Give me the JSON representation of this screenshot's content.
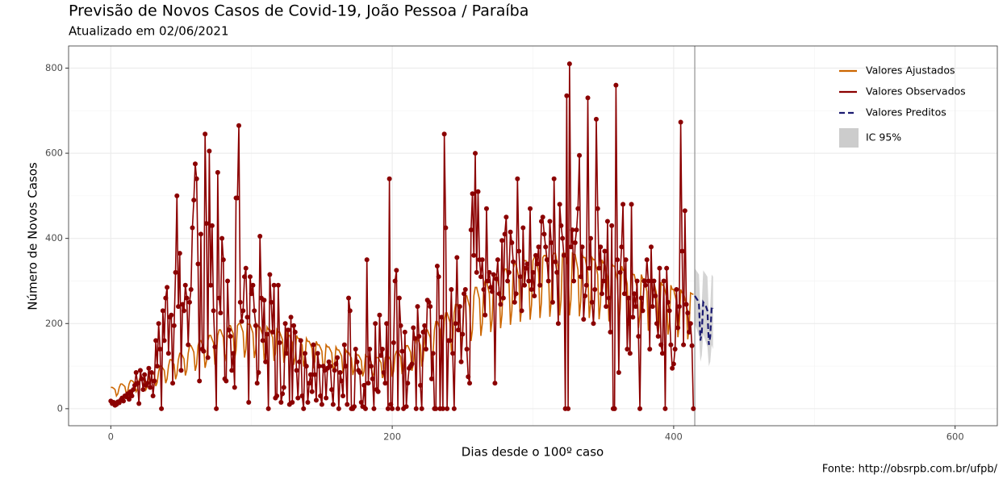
{
  "chart_data": {
    "type": "line",
    "title": "Previsão de Novos Casos de Covid-19, João Pessoa / Paraíba",
    "subtitle": "Atualizado em 02/06/2021",
    "x_label": "Dias desde o 100º caso",
    "y_label": "Número de Novos Casos",
    "caption": "Fonte: http://obsrpb.com.br/ufpb/",
    "xlim": [
      -30,
      630
    ],
    "ylim": [
      -40,
      852
    ],
    "xticks": [
      0,
      200,
      400,
      600
    ],
    "yticks": [
      0,
      200,
      400,
      600,
      800
    ],
    "xminor": [
      100,
      300,
      500
    ],
    "yminor": [
      100,
      300,
      500,
      700
    ],
    "grid": true,
    "legend": "top-right",
    "vline": 415,
    "x": [
      0,
      1,
      2,
      3,
      4,
      5,
      6,
      7,
      8,
      9,
      10,
      11,
      12,
      13,
      14,
      15,
      16,
      17,
      18,
      19,
      20,
      21,
      22,
      23,
      24,
      25,
      26,
      27,
      28,
      29,
      30,
      31,
      32,
      33,
      34,
      35,
      36,
      37,
      38,
      39,
      40,
      41,
      42,
      43,
      44,
      45,
      46,
      47,
      48,
      49,
      50,
      51,
      52,
      53,
      54,
      55,
      56,
      57,
      58,
      59,
      60,
      61,
      62,
      63,
      64,
      65,
      66,
      67,
      68,
      69,
      70,
      71,
      72,
      73,
      74,
      75,
      76,
      77,
      78,
      79,
      80,
      81,
      82,
      83,
      84,
      85,
      86,
      87,
      88,
      89,
      90,
      91,
      92,
      93,
      94,
      95,
      96,
      97,
      98,
      99,
      100,
      101,
      102,
      103,
      104,
      105,
      106,
      107,
      108,
      109,
      110,
      111,
      112,
      113,
      114,
      115,
      116,
      117,
      118,
      119,
      120,
      121,
      122,
      123,
      124,
      125,
      126,
      127,
      128,
      129,
      130,
      131,
      132,
      133,
      134,
      135,
      136,
      137,
      138,
      139,
      140,
      141,
      142,
      143,
      144,
      145,
      146,
      147,
      148,
      149,
      150,
      151,
      152,
      153,
      154,
      155,
      156,
      157,
      158,
      159,
      160,
      161,
      162,
      163,
      164,
      165,
      166,
      167,
      168,
      169,
      170,
      171,
      172,
      173,
      174,
      175,
      176,
      177,
      178,
      179,
      180,
      181,
      182,
      183,
      184,
      185,
      186,
      187,
      188,
      189,
      190,
      191,
      192,
      193,
      194,
      195,
      196,
      197,
      198,
      199,
      200,
      201,
      202,
      203,
      204,
      205,
      206,
      207,
      208,
      209,
      210,
      211,
      212,
      213,
      214,
      215,
      216,
      217,
      218,
      219,
      220,
      221,
      222,
      223,
      224,
      225,
      226,
      227,
      228,
      229,
      230,
      231,
      232,
      233,
      234,
      235,
      236,
      237,
      238,
      239,
      240,
      241,
      242,
      243,
      244,
      245,
      246,
      247,
      248,
      249,
      250,
      251,
      252,
      253,
      254,
      255,
      256,
      257,
      258,
      259,
      260,
      261,
      262,
      263,
      264,
      265,
      266,
      267,
      268,
      269,
      270,
      271,
      272,
      273,
      274,
      275,
      276,
      277,
      278,
      279,
      280,
      281,
      282,
      283,
      284,
      285,
      286,
      287,
      288,
      289,
      290,
      291,
      292,
      293,
      294,
      295,
      296,
      297,
      298,
      299,
      300,
      301,
      302,
      303,
      304,
      305,
      306,
      307,
      308,
      309,
      310,
      311,
      312,
      313,
      314,
      315,
      316,
      317,
      318,
      319,
      320,
      321,
      322,
      323,
      324,
      325,
      326,
      327,
      328,
      329,
      330,
      331,
      332,
      333,
      334,
      335,
      336,
      337,
      338,
      339,
      340,
      341,
      342,
      343,
      344,
      345,
      346,
      347,
      348,
      349,
      350,
      351,
      352,
      353,
      354,
      355,
      356,
      357,
      358,
      359,
      360,
      361,
      362,
      363,
      364,
      365,
      366,
      367,
      368,
      369,
      370,
      371,
      372,
      373,
      374,
      375,
      376,
      377,
      378,
      379,
      380,
      381,
      382,
      383,
      384,
      385,
      386,
      387,
      388,
      389,
      390,
      391,
      392,
      393,
      394,
      395,
      396,
      397,
      398,
      399,
      400,
      401,
      402,
      403,
      404,
      405,
      406,
      407,
      408,
      409,
      410,
      411,
      412,
      413,
      414
    ],
    "series": [
      {
        "name": "Valores Ajustados",
        "color": "#cc6600",
        "values": [
          50,
          50,
          48,
          45,
          30,
          35,
          50,
          58,
          58,
          55,
          52,
          35,
          41,
          58,
          66,
          66,
          63,
          59,
          40,
          46,
          66,
          75,
          75,
          71,
          68,
          45,
          53,
          75,
          88,
          88,
          84,
          79,
          53,
          62,
          88,
          100,
          100,
          95,
          90,
          60,
          70,
          100,
          115,
          115,
          109,
          104,
          69,
          81,
          115,
          130,
          130,
          124,
          117,
          78,
          91,
          130,
          148,
          148,
          141,
          133,
          89,
          104,
          148,
          160,
          160,
          152,
          144,
          96,
          112,
          160,
          172,
          172,
          163,
          155,
          103,
          120,
          172,
          185,
          185,
          176,
          167,
          111,
          130,
          185,
          195,
          195,
          185,
          176,
          117,
          137,
          195,
          200,
          200,
          190,
          180,
          120,
          140,
          200,
          198,
          198,
          188,
          178,
          119,
          139,
          198,
          192,
          192,
          182,
          173,
          115,
          134,
          192,
          186,
          186,
          177,
          167,
          112,
          130,
          186,
          180,
          180,
          171,
          162,
          108,
          126,
          180,
          172,
          172,
          163,
          155,
          103,
          120,
          172,
          165,
          165,
          157,
          149,
          99,
          116,
          165,
          158,
          158,
          150,
          142,
          95,
          111,
          158,
          150,
          150,
          143,
          135,
          90,
          105,
          150,
          145,
          145,
          138,
          131,
          87,
          102,
          145,
          138,
          138,
          131,
          124,
          83,
          97,
          138,
          132,
          132,
          125,
          119,
          79,
          92,
          132,
          126,
          126,
          120,
          113,
          76,
          88,
          126,
          122,
          122,
          116,
          110,
          73,
          85,
          122,
          120,
          120,
          114,
          108,
          72,
          84,
          120,
          125,
          125,
          119,
          113,
          75,
          88,
          125,
          135,
          135,
          128,
          122,
          81,
          95,
          135,
          148,
          148,
          141,
          133,
          89,
          104,
          148,
          165,
          165,
          157,
          149,
          99,
          116,
          165,
          185,
          185,
          176,
          167,
          111,
          130,
          185,
          205,
          205,
          195,
          185,
          123,
          144,
          205,
          225,
          225,
          214,
          203,
          135,
          158,
          225,
          245,
          245,
          233,
          221,
          147,
          172,
          245,
          265,
          265,
          252,
          239,
          159,
          186,
          265,
          285,
          285,
          271,
          257,
          171,
          200,
          285,
          300,
          300,
          285,
          270,
          180,
          210,
          300,
          315,
          315,
          299,
          284,
          189,
          221,
          315,
          328,
          328,
          312,
          295,
          197,
          230,
          328,
          340,
          340,
          323,
          306,
          204,
          238,
          340,
          348,
          348,
          331,
          313,
          209,
          244,
          348,
          355,
          355,
          337,
          320,
          213,
          249,
          355,
          360,
          360,
          342,
          324,
          216,
          252,
          360,
          365,
          365,
          347,
          329,
          219,
          256,
          365,
          365,
          365,
          347,
          329,
          219,
          256,
          365,
          362,
          362,
          344,
          326,
          217,
          253,
          362,
          355,
          355,
          337,
          320,
          213,
          249,
          355,
          350,
          350,
          333,
          315,
          210,
          245,
          350,
          342,
          342,
          325,
          308,
          205,
          239,
          342,
          335,
          335,
          318,
          302,
          201,
          235,
          335,
          325,
          325,
          309,
          293,
          195,
          228,
          325,
          315,
          315,
          299,
          284,
          189,
          221,
          315,
          305,
          305,
          290,
          275,
          183,
          214,
          305,
          297,
          297,
          282,
          267,
          178,
          208,
          297,
          290,
          290,
          276,
          261,
          174,
          203,
          290,
          280,
          280,
          266,
          252,
          168,
          196,
          280,
          272,
          272,
          258,
          245,
          163,
          190,
          272,
          270,
          268
        ]
      },
      {
        "name": "Valores Observados",
        "color": "#8b0000",
        "values": [
          18,
          12,
          15,
          8,
          10,
          16,
          14,
          20,
          25,
          18,
          30,
          28,
          35,
          22,
          40,
          30,
          45,
          55,
          85,
          60,
          12,
          90,
          70,
          45,
          80,
          55,
          60,
          95,
          50,
          85,
          30,
          65,
          160,
          100,
          200,
          140,
          0,
          230,
          160,
          260,
          285,
          130,
          215,
          220,
          60,
          195,
          320,
          500,
          240,
          365,
          90,
          245,
          230,
          290,
          260,
          150,
          250,
          280,
          425,
          490,
          575,
          540,
          340,
          65,
          410,
          140,
          135,
          645,
          435,
          120,
          605,
          290,
          430,
          230,
          145,
          0,
          555,
          260,
          225,
          400,
          350,
          70,
          65,
          300,
          185,
          170,
          90,
          130,
          50,
          495,
          495,
          665,
          250,
          205,
          230,
          310,
          330,
          215,
          15,
          310,
          270,
          290,
          230,
          195,
          60,
          85,
          405,
          260,
          160,
          255,
          110,
          175,
          0,
          315,
          250,
          180,
          290,
          25,
          30,
          290,
          155,
          15,
          35,
          50,
          200,
          130,
          185,
          10,
          215,
          15,
          195,
          180,
          90,
          25,
          110,
          160,
          30,
          0,
          130,
          100,
          15,
          60,
          80,
          40,
          150,
          80,
          20,
          130,
          100,
          30,
          10,
          100,
          90,
          25,
          95,
          110,
          100,
          45,
          10,
          90,
          105,
          120,
          0,
          85,
          65,
          30,
          150,
          100,
          10,
          260,
          230,
          0,
          0,
          5,
          140,
          110,
          90,
          85,
          15,
          5,
          55,
          0,
          350,
          60,
          140,
          100,
          70,
          0,
          200,
          45,
          40,
          220,
          125,
          140,
          85,
          60,
          200,
          0,
          540,
          10,
          0,
          155,
          300,
          325,
          0,
          260,
          195,
          135,
          0,
          180,
          5,
          60,
          95,
          100,
          105,
          190,
          165,
          0,
          240,
          170,
          55,
          0,
          180,
          195,
          140,
          255,
          250,
          240,
          70,
          130,
          0,
          0,
          335,
          310,
          0,
          215,
          0,
          645,
          425,
          0,
          160,
          160,
          280,
          130,
          0,
          200,
          355,
          185,
          240,
          110,
          175,
          270,
          280,
          140,
          75,
          60,
          420,
          505,
          360,
          600,
          320,
          510,
          350,
          310,
          350,
          280,
          220,
          470,
          300,
          320,
          285,
          275,
          315,
          60,
          305,
          350,
          270,
          245,
          395,
          260,
          410,
          450,
          300,
          320,
          415,
          390,
          345,
          250,
          270,
          540,
          370,
          310,
          230,
          425,
          290,
          330,
          340,
          300,
          470,
          280,
          320,
          265,
          360,
          340,
          380,
          290,
          440,
          450,
          410,
          380,
          350,
          300,
          440,
          390,
          250,
          540,
          345,
          320,
          200,
          480,
          430,
          400,
          360,
          0,
          735,
          0,
          810,
          380,
          420,
          300,
          390,
          420,
          470,
          595,
          310,
          380,
          210,
          265,
          290,
          730,
          330,
          400,
          250,
          200,
          280,
          680,
          470,
          330,
          380,
          270,
          300,
          370,
          240,
          440,
          260,
          180,
          430,
          0,
          0,
          760,
          350,
          85,
          320,
          380,
          480,
          270,
          350,
          140,
          260,
          130,
          480,
          215,
          270,
          240,
          300,
          170,
          0,
          260,
          230,
          300,
          290,
          350,
          300,
          140,
          380,
          240,
          300,
          265,
          200,
          170,
          330,
          150,
          130,
          300,
          0,
          330,
          250,
          230,
          150,
          95,
          105,
          140,
          280,
          190,
          240,
          673,
          370,
          150,
          465,
          245,
          225,
          180,
          200,
          148,
          0
        ]
      },
      {
        "name": "Valores Preditos",
        "color": "#191970",
        "dashed": true,
        "x": [
          415,
          416,
          417,
          418,
          419,
          420,
          421,
          422,
          423,
          424,
          425,
          426,
          427,
          428
        ],
        "values": [
          265,
          260,
          255,
          245,
          160,
          180,
          250,
          245,
          240,
          230,
          150,
          170,
          240,
          235
        ]
      }
    ],
    "ci": {
      "name": "IC 95%",
      "color": "#cccccc",
      "x": [
        415,
        416,
        417,
        418,
        419,
        420,
        421,
        422,
        423,
        424,
        425,
        426,
        427,
        428
      ],
      "lower": [
        200,
        190,
        180,
        170,
        110,
        125,
        175,
        165,
        155,
        145,
        100,
        110,
        150,
        140
      ],
      "upper": [
        330,
        325,
        320,
        315,
        230,
        250,
        325,
        320,
        315,
        310,
        220,
        240,
        315,
        310
      ]
    }
  }
}
